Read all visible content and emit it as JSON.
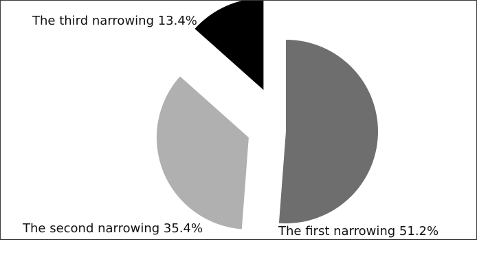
{
  "chart_data": {
    "type": "pie",
    "slices": [
      {
        "label": "The first narrowing 51.2%",
        "name": "The first narrowing",
        "value": 51.2,
        "color": "#6e6e6e"
      },
      {
        "label": "The second narrowing 35.4%",
        "name": "The second narrowing",
        "value": 35.4,
        "color": "#b0b0b0"
      },
      {
        "label": "The third narrowing 13.4%",
        "name": "The third narrowing",
        "value": 13.4,
        "color": "#000000"
      }
    ],
    "exploded": true,
    "legend": "none"
  }
}
